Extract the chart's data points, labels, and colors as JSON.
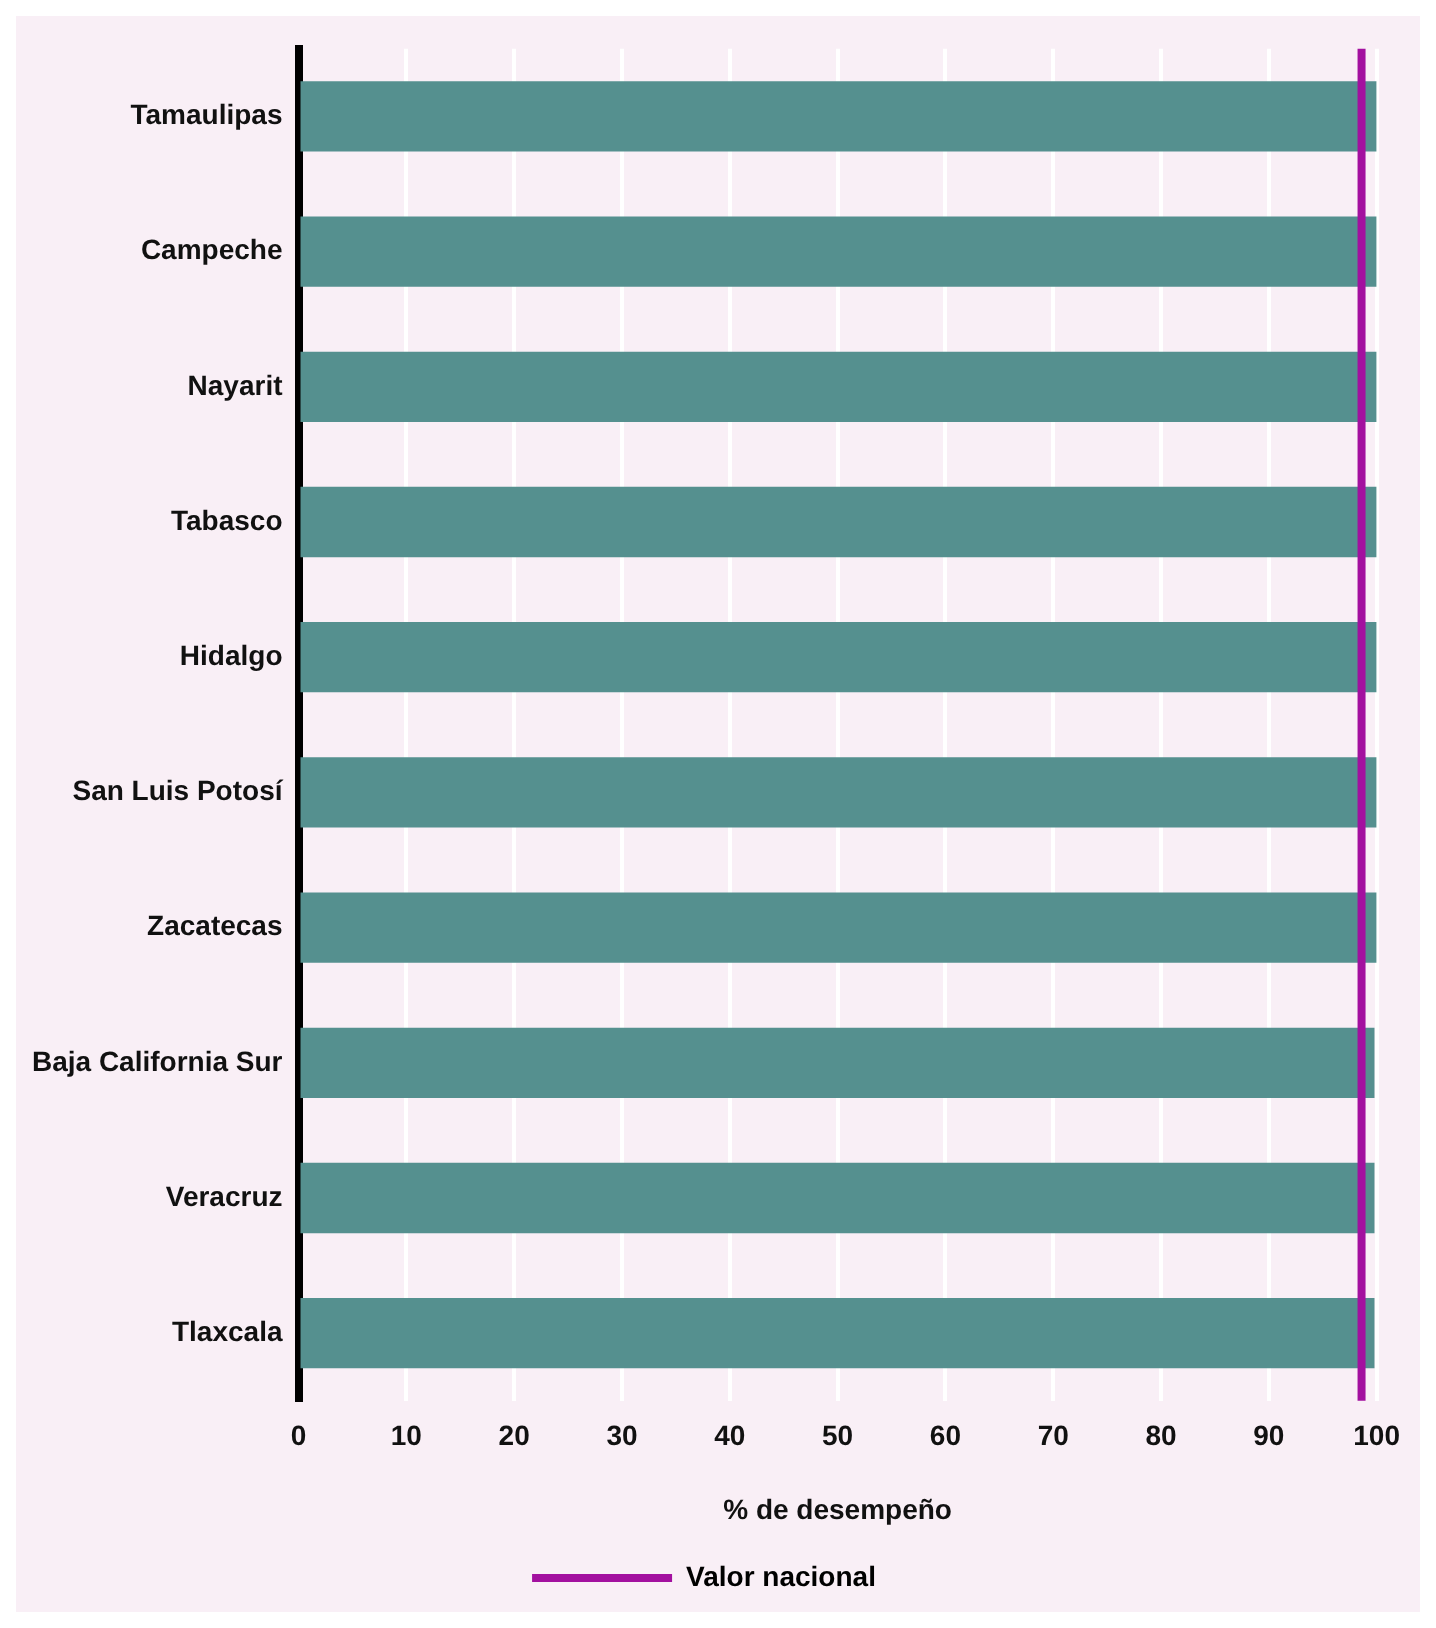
{
  "chart_data": {
    "type": "bar",
    "orientation": "horizontal",
    "xlabel": "% de desempeño",
    "categories": [
      "Tamaulipas",
      "Campeche",
      "Nayarit",
      "Tabasco",
      "Hidalgo",
      "San Luis Potosí",
      "Zacatecas",
      "Baja California Sur",
      "Veracruz",
      "Tlaxcala"
    ],
    "values": [
      100,
      100,
      100,
      100,
      100,
      100,
      100,
      99.8,
      99.8,
      99.8
    ],
    "color": "#55908f",
    "xlim": [
      0,
      100
    ],
    "xticks": [
      0,
      10,
      20,
      30,
      40,
      50,
      60,
      70,
      80,
      90,
      100
    ],
    "ref_lines": [
      {
        "axis": "x",
        "value": 98.6,
        "label": "Valor nacional",
        "color": "#a3109f"
      }
    ],
    "grid": "x",
    "legend": "bottom"
  }
}
